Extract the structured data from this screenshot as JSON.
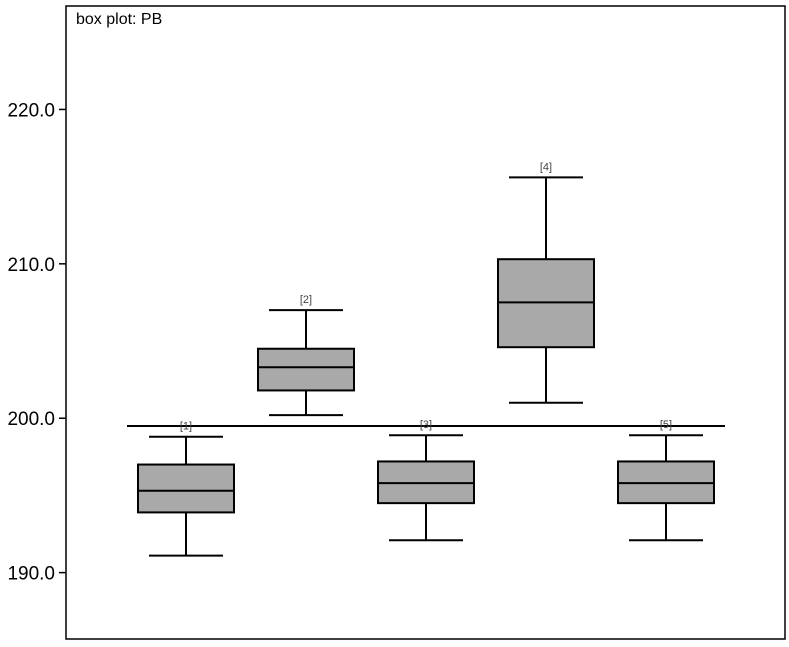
{
  "chart_data": {
    "type": "box",
    "title": "box plot: PB",
    "xlabel": "",
    "ylabel": "",
    "ylim": [
      185.7,
      226.7
    ],
    "yticks": [
      190.0,
      200.0,
      210.0,
      220.0
    ],
    "ytick_labels": [
      "190.0",
      "200.0",
      "210.0",
      "220.0"
    ],
    "reference_line": 199.5,
    "boxes": [
      {
        "label": "[1]",
        "min": 191.1,
        "q1": 193.9,
        "median": 195.3,
        "q3": 197.0,
        "max": 198.8
      },
      {
        "label": "[2]",
        "min": 200.2,
        "q1": 201.8,
        "median": 203.3,
        "q3": 204.5,
        "max": 207.0
      },
      {
        "label": "[3]",
        "min": 192.1,
        "q1": 194.5,
        "median": 195.8,
        "q3": 197.2,
        "max": 198.9
      },
      {
        "label": "[4]",
        "min": 201.0,
        "q1": 204.6,
        "median": 207.5,
        "q3": 210.3,
        "max": 215.6
      },
      {
        "label": "[5]",
        "min": 192.1,
        "q1": 194.5,
        "median": 195.8,
        "q3": 197.2,
        "max": 198.9
      }
    ],
    "grid": false,
    "colors": {
      "box_fill": "#a9a9a9",
      "stroke": "#000000"
    }
  }
}
